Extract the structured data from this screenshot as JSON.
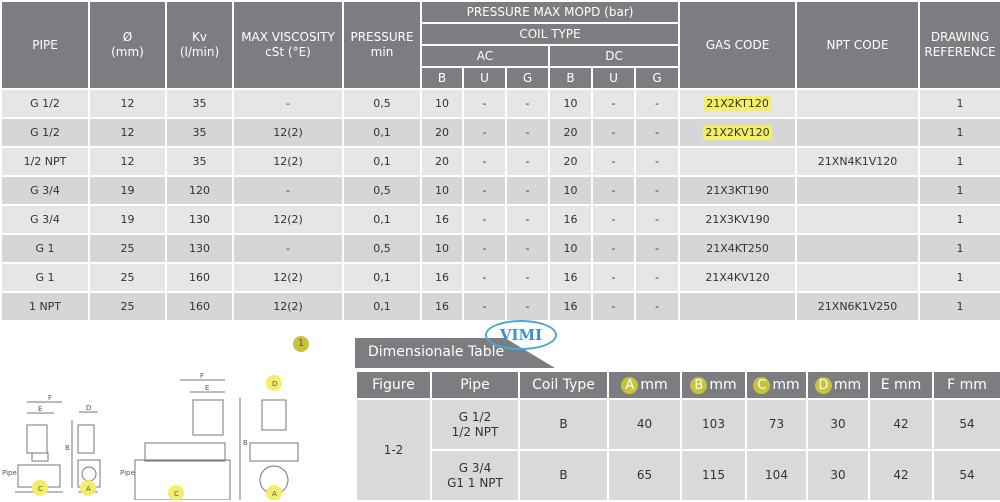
{
  "main_table": {
    "headers": {
      "pipe": "PIPE",
      "dia": "Ø\n(mm)",
      "kv": "Kv\n(l/min)",
      "visc": "MAX VISCOSITY\ncSt (°E)",
      "pressure": "PRESSURE\nmin",
      "mopd": "PRESSURE MAX MOPD (bar)",
      "coil": "COIL TYPE",
      "ac": "AC",
      "dc": "DC",
      "b": "B",
      "u": "U",
      "g": "G",
      "gas": "GAS CODE",
      "npt": "NPT CODE",
      "drawing": "DRAWING\nREFERENCE"
    },
    "rows": [
      [
        "G 1/2",
        "12",
        "35",
        "-",
        "0,5",
        "10",
        "-",
        "-",
        "10",
        "-",
        "-",
        "21X2KT120",
        "",
        "1"
      ],
      [
        "G 1/2",
        "12",
        "35",
        "12(2)",
        "0,1",
        "20",
        "-",
        "-",
        "20",
        "-",
        "-",
        "21X2KV120",
        "",
        "1"
      ],
      [
        "1/2 NPT",
        "12",
        "35",
        "12(2)",
        "0,1",
        "20",
        "-",
        "-",
        "20",
        "-",
        "-",
        "",
        "21XN4K1V120",
        "1"
      ],
      [
        "G 3/4",
        "19",
        "120",
        "-",
        "0,5",
        "10",
        "-",
        "-",
        "10",
        "-",
        "-",
        "21X3KT190",
        "",
        "1"
      ],
      [
        "G 3/4",
        "19",
        "130",
        "12(2)",
        "0,1",
        "16",
        "-",
        "-",
        "16",
        "-",
        "-",
        "21X3KV190",
        "",
        "1"
      ],
      [
        "G 1",
        "25",
        "130",
        "-",
        "0,5",
        "10",
        "-",
        "-",
        "10",
        "-",
        "-",
        "21X4KT250",
        "",
        "1"
      ],
      [
        "G 1",
        "25",
        "160",
        "12(2)",
        "0,1",
        "16",
        "-",
        "-",
        "16",
        "-",
        "-",
        "21X4KV120",
        "",
        "1"
      ],
      [
        "1 NPT",
        "25",
        "160",
        "12(2)",
        "0,1",
        "16",
        "-",
        "-",
        "16",
        "-",
        "-",
        "",
        "21XN6K1V250",
        "1"
      ]
    ],
    "highlighted_rows": [
      0,
      1
    ],
    "highlight_color": "#f4f066"
  },
  "badge": "1",
  "logo": "VIMI",
  "dim_table": {
    "title": "Dimensionale Table",
    "headers": [
      "Figure",
      "Pipe",
      "Coil Type",
      "A",
      "B",
      "C",
      "D",
      "E mm",
      "F mm"
    ],
    "unit": "mm",
    "figure": "1-2",
    "rows": [
      {
        "pipe": "G 1/2\n1/2 NPT",
        "coil": "B",
        "vals": [
          "40",
          "103",
          "73",
          "30",
          "42",
          "54"
        ]
      },
      {
        "pipe": "G 3/4\nG1 1 NPT",
        "coil": "B",
        "vals": [
          "65",
          "115",
          "104",
          "30",
          "42",
          "54"
        ]
      }
    ]
  },
  "drawing": {
    "labels": [
      "F",
      "E",
      "D",
      "B",
      "Pipe",
      "C",
      "A"
    ]
  }
}
